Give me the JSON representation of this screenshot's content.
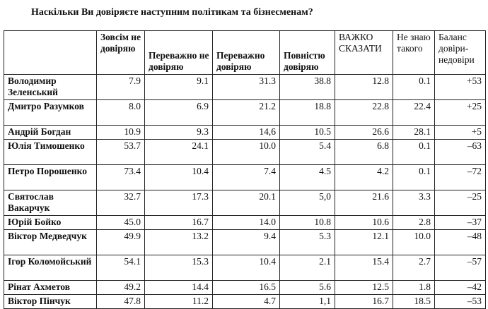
{
  "title": "Наскільки Ви довіряєте наступним політикам та бізнесменам?",
  "columns": [
    "",
    "Зовсім не довіряю",
    "Переважно не довіряю",
    "Переважно довіряю",
    "Повністю довіряю",
    "ВАЖКО СКАЗАТИ",
    "Не знаю такого",
    "Баланс довіри-недовіри"
  ],
  "rows": [
    {
      "name": "Володимир Зеленський",
      "values": [
        "7.9",
        "9.1",
        "31.3",
        "38.8",
        "12.8",
        "0.1",
        "+53"
      ]
    },
    {
      "name": "Дмитро Разумков",
      "values": [
        "8.0",
        "6.9",
        "21.2",
        "18.8",
        "22.8",
        "22.4",
        "+25"
      ]
    },
    {
      "name": "Андрій Богдан",
      "values": [
        "10.9",
        "9.3",
        "14,6",
        "10.5",
        "26.6",
        "28.1",
        "+5"
      ]
    },
    {
      "name": "Юлія Тимошенко",
      "values": [
        "53.7",
        "24.1",
        "10.0",
        "5.4",
        "6.8",
        "0.1",
        "–63"
      ]
    },
    {
      "name": "Петро Порошенко",
      "values": [
        "73.4",
        "10.4",
        "7.4",
        "4.5",
        "4.2",
        "0.1",
        "–72"
      ]
    },
    {
      "name": "Святослав Вакарчук",
      "values": [
        "32.7",
        "17.3",
        "20.1",
        "5,0",
        "21.6",
        "3.3",
        "–25"
      ]
    },
    {
      "name": "Юрій Бойко",
      "values": [
        "45.0",
        "16.7",
        "14.0",
        "10.8",
        "10.6",
        "2.8",
        "–37"
      ]
    },
    {
      "name": "Віктор Медведчук",
      "values": [
        "49.9",
        "13.2",
        "9.4",
        "5.3",
        "12.1",
        "10.0",
        "–48"
      ]
    },
    {
      "name": "Ігор Коломойський",
      "values": [
        "54.1",
        "15.3",
        "10.4",
        "2.1",
        "15.4",
        "2.7",
        "–57"
      ]
    },
    {
      "name": "Рінат Ахметов",
      "values": [
        "49.2",
        "14.4",
        "16.5",
        "5.6",
        "12.5",
        "1.8",
        "–42"
      ]
    },
    {
      "name": "Віктор Пінчук",
      "values": [
        "47.8",
        "11.2",
        "4.7",
        "1,1",
        "16.7",
        "18.5",
        "–53"
      ]
    }
  ]
}
